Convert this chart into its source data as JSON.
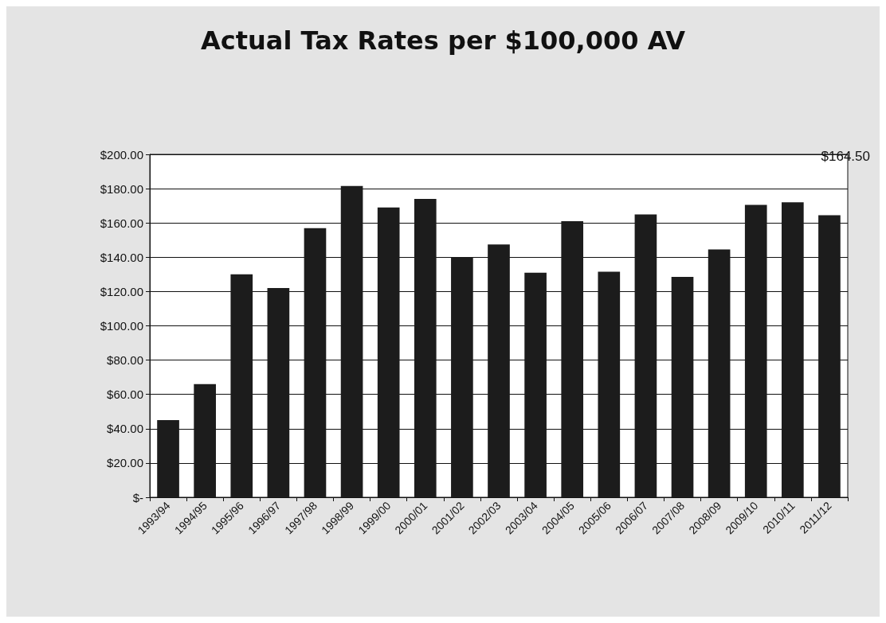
{
  "chart_data": {
    "type": "bar",
    "title": "Actual Tax Rates per $100,000 AV",
    "categories": [
      "1993/94",
      "1994/95",
      "1995/96",
      "1996/97",
      "1997/98",
      "1998/99",
      "1999/00",
      "2000/01",
      "2001/02",
      "2002/03",
      "2003/04",
      "2004/05",
      "2005/06",
      "2006/07",
      "2007/08",
      "2008/09",
      "2009/10",
      "2010/11",
      "2011/12"
    ],
    "values": [
      45,
      66,
      130,
      122,
      157,
      181.5,
      169,
      174,
      140,
      147.5,
      131,
      161,
      131.5,
      165,
      128.5,
      144.5,
      170.5,
      172,
      164.5
    ],
    "color": "#1c1c1c",
    "ylim": [
      0,
      200
    ],
    "yticks": [
      {
        "value": 0,
        "label": "$-"
      },
      {
        "value": 20,
        "label": "$20.00"
      },
      {
        "value": 40,
        "label": "$40.00"
      },
      {
        "value": 60,
        "label": "$60.00"
      },
      {
        "value": 80,
        "label": "$80.00"
      },
      {
        "value": 100,
        "label": "$100.00"
      },
      {
        "value": 120,
        "label": "$120.00"
      },
      {
        "value": 140,
        "label": "$140.00"
      },
      {
        "value": 160,
        "label": "$160.00"
      },
      {
        "value": 180,
        "label": "$180.00"
      },
      {
        "value": 200,
        "label": "$200.00"
      }
    ],
    "grid": "y",
    "annotations": [
      "$164.50"
    ]
  }
}
